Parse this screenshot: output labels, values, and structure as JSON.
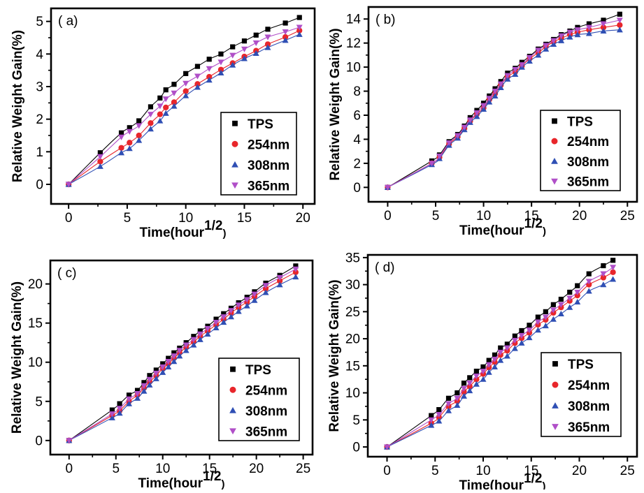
{
  "colors": {
    "tps": "#000000",
    "nm254": "#e8262b",
    "nm308": "#2f4fb4",
    "nm365": "#b04fc8",
    "frame": "#000000",
    "background": "#ffffff"
  },
  "chart_data": [
    {
      "type": "scatter",
      "panel_label": "( a)",
      "xlabel": "Time(hour",
      "xlabel_sup": "1/2",
      "xlabel_close": ")",
      "ylabel": "Relative Weight Gain(%)",
      "xlim": [
        -1.5,
        21
      ],
      "ylim": [
        -0.6,
        5.4
      ],
      "xticks": [
        0,
        5,
        10,
        15,
        20
      ],
      "yticks": [
        0,
        1,
        2,
        3,
        4,
        5
      ],
      "legend": "lower-right",
      "series": [
        {
          "name": "TPS",
          "marker": "square",
          "x": [
            0,
            2.7,
            4.5,
            5.2,
            6.0,
            7.0,
            7.8,
            8.3,
            9.0,
            10.0,
            11.0,
            12.0,
            13.0,
            14.0,
            15.0,
            16.0,
            17.0,
            18.5,
            19.7
          ],
          "y": [
            0,
            0.97,
            1.58,
            1.74,
            1.95,
            2.38,
            2.65,
            2.9,
            3.07,
            3.4,
            3.62,
            3.84,
            4.0,
            4.22,
            4.4,
            4.58,
            4.76,
            4.95,
            5.12
          ]
        },
        {
          "name": "254nm",
          "marker": "circle",
          "x": [
            0,
            2.7,
            4.5,
            5.2,
            6.0,
            7.0,
            7.8,
            8.3,
            9.0,
            10.0,
            11.0,
            12.0,
            13.0,
            14.0,
            15.0,
            16.0,
            17.0,
            18.5,
            19.7
          ],
          "y": [
            0,
            0.7,
            1.12,
            1.28,
            1.5,
            1.88,
            2.15,
            2.36,
            2.52,
            2.86,
            3.08,
            3.3,
            3.52,
            3.72,
            3.92,
            4.1,
            4.3,
            4.52,
            4.72
          ]
        },
        {
          "name": "308nm",
          "marker": "triangle-up",
          "x": [
            0,
            2.7,
            4.5,
            5.2,
            6.0,
            7.0,
            7.8,
            8.3,
            9.0,
            10.0,
            11.0,
            12.0,
            13.0,
            14.0,
            15.0,
            16.0,
            17.0,
            18.5,
            19.7
          ],
          "y": [
            0,
            0.55,
            0.97,
            1.1,
            1.35,
            1.7,
            1.95,
            2.18,
            2.4,
            2.72,
            2.98,
            3.2,
            3.42,
            3.66,
            3.86,
            4.02,
            4.2,
            4.42,
            4.6
          ]
        },
        {
          "name": "365nm",
          "marker": "triangle-down",
          "x": [
            0,
            2.7,
            4.5,
            5.2,
            6.0,
            7.0,
            7.8,
            8.3,
            9.0,
            10.0,
            11.0,
            12.0,
            13.0,
            14.0,
            15.0,
            16.0,
            17.0,
            18.5,
            19.7
          ],
          "y": [
            0,
            0.85,
            1.45,
            1.62,
            1.8,
            2.15,
            2.4,
            2.62,
            2.8,
            3.1,
            3.32,
            3.55,
            3.75,
            3.96,
            4.15,
            4.34,
            4.52,
            4.68,
            4.82
          ]
        }
      ]
    },
    {
      "type": "scatter",
      "panel_label": "( b)",
      "xlabel": "Time(hour",
      "xlabel_sup": "1/2",
      "xlabel_close": ")",
      "ylabel": "Relative Weight Gain(%)",
      "xlim": [
        -2,
        26
      ],
      "ylim": [
        -1.2,
        15
      ],
      "xticks": [
        0,
        5,
        10,
        15,
        20,
        25
      ],
      "yticks": [
        0,
        2,
        4,
        6,
        8,
        10,
        12,
        14
      ],
      "legend": "lower-right",
      "series": [
        {
          "name": "TPS",
          "marker": "square",
          "x": [
            0,
            4.6,
            5.4,
            6.4,
            7.3,
            8.0,
            8.6,
            9.3,
            10.0,
            10.6,
            11.2,
            11.8,
            12.5,
            13.3,
            14.0,
            14.8,
            15.7,
            16.5,
            17.3,
            18.1,
            19.0,
            19.8,
            21.0,
            22.5,
            24.2
          ],
          "y": [
            0,
            2.2,
            2.7,
            3.8,
            4.4,
            5.1,
            5.8,
            6.4,
            7.0,
            7.6,
            8.2,
            8.8,
            9.5,
            9.9,
            10.4,
            10.9,
            11.5,
            11.9,
            12.3,
            12.7,
            13.0,
            13.3,
            13.6,
            13.9,
            14.4
          ]
        },
        {
          "name": "254nm",
          "marker": "circle",
          "x": [
            0,
            4.6,
            5.4,
            6.4,
            7.3,
            8.0,
            8.6,
            9.3,
            10.0,
            10.6,
            11.2,
            11.8,
            12.5,
            13.3,
            14.0,
            14.8,
            15.7,
            16.5,
            17.3,
            18.1,
            19.0,
            19.8,
            21.0,
            22.5,
            24.2
          ],
          "y": [
            0,
            2.0,
            2.5,
            3.6,
            4.2,
            4.9,
            5.5,
            6.1,
            6.6,
            7.3,
            7.8,
            8.5,
            9.2,
            9.6,
            10.1,
            10.7,
            11.2,
            11.7,
            12.1,
            12.4,
            12.7,
            12.9,
            13.1,
            13.3,
            13.5
          ]
        },
        {
          "name": "308nm",
          "marker": "triangle-up",
          "x": [
            0,
            4.6,
            5.4,
            6.4,
            7.3,
            8.0,
            8.6,
            9.3,
            10.0,
            10.6,
            11.2,
            11.8,
            12.5,
            13.3,
            14.0,
            14.8,
            15.7,
            16.5,
            17.3,
            18.1,
            19.0,
            19.8,
            21.0,
            22.5,
            24.2
          ],
          "y": [
            0,
            1.9,
            2.4,
            3.5,
            4.1,
            4.8,
            5.4,
            5.9,
            6.5,
            7.1,
            7.6,
            8.3,
            9.0,
            9.4,
            10.0,
            10.5,
            11.0,
            11.5,
            11.9,
            12.2,
            12.5,
            12.7,
            12.8,
            13.0,
            13.1
          ]
        },
        {
          "name": "365nm",
          "marker": "triangle-down",
          "x": [
            0,
            4.6,
            5.4,
            6.4,
            7.3,
            8.0,
            8.6,
            9.3,
            10.0,
            10.6,
            11.2,
            11.8,
            12.5,
            13.3,
            14.0,
            14.8,
            15.7,
            16.5,
            17.3,
            18.1,
            19.0,
            19.8,
            21.0,
            22.5,
            24.2
          ],
          "y": [
            0,
            2.0,
            2.6,
            3.7,
            4.3,
            5.0,
            5.6,
            6.2,
            6.8,
            7.4,
            8.0,
            8.6,
            9.3,
            9.8,
            10.2,
            10.8,
            11.4,
            11.8,
            12.2,
            12.6,
            12.9,
            13.1,
            13.3,
            13.6,
            13.9
          ]
        }
      ]
    },
    {
      "type": "scatter",
      "panel_label": "( c)",
      "xlabel": "Time(hour",
      "xlabel_sup": "1/2",
      "xlabel_close": ")",
      "ylabel": "Relative Weight Gain(%)",
      "xlim": [
        -2,
        26
      ],
      "ylim": [
        -1.8,
        23
      ],
      "xticks": [
        0,
        5,
        10,
        15,
        20,
        25
      ],
      "yticks": [
        0,
        5,
        10,
        15,
        20
      ],
      "legend": "lower-right",
      "series": [
        {
          "name": "TPS",
          "marker": "square",
          "x": [
            0,
            4.6,
            5.4,
            6.4,
            7.3,
            8.0,
            8.6,
            9.3,
            10.0,
            10.6,
            11.2,
            11.8,
            12.5,
            13.3,
            14.0,
            14.8,
            15.7,
            16.5,
            17.3,
            18.1,
            19.0,
            19.8,
            21.0,
            22.5,
            24.2
          ],
          "y": [
            0,
            3.9,
            4.7,
            5.8,
            6.4,
            7.4,
            8.3,
            9.0,
            9.8,
            10.5,
            11.2,
            11.8,
            12.5,
            13.3,
            14.0,
            14.6,
            15.5,
            16.2,
            16.9,
            17.6,
            18.3,
            19.0,
            20.1,
            21.1,
            22.3
          ]
        },
        {
          "name": "254nm",
          "marker": "circle",
          "x": [
            0,
            4.6,
            5.4,
            6.4,
            7.3,
            8.0,
            8.6,
            9.3,
            10.0,
            10.6,
            11.2,
            11.8,
            12.5,
            13.3,
            14.0,
            14.8,
            15.7,
            16.5,
            17.3,
            18.1,
            19.0,
            19.8,
            21.0,
            22.5,
            24.2
          ],
          "y": [
            0,
            3.2,
            3.8,
            5.0,
            5.8,
            6.7,
            7.5,
            8.3,
            9.2,
            9.8,
            10.5,
            11.2,
            11.9,
            12.6,
            13.3,
            14.0,
            14.8,
            15.5,
            16.3,
            17.0,
            17.7,
            18.4,
            19.4,
            20.4,
            21.5
          ]
        },
        {
          "name": "308nm",
          "marker": "triangle-up",
          "x": [
            0,
            4.6,
            5.4,
            6.4,
            7.3,
            8.0,
            8.6,
            9.3,
            10.0,
            10.6,
            11.2,
            11.8,
            12.5,
            13.3,
            14.0,
            14.8,
            15.7,
            16.5,
            17.3,
            18.1,
            19.0,
            19.8,
            21.0,
            22.5,
            24.2
          ],
          "y": [
            0,
            2.9,
            3.5,
            4.7,
            5.4,
            6.3,
            7.1,
            7.9,
            8.7,
            9.4,
            10.1,
            10.8,
            11.5,
            12.2,
            12.9,
            13.6,
            14.4,
            15.1,
            15.8,
            16.5,
            17.2,
            17.9,
            18.9,
            19.9,
            20.9
          ]
        },
        {
          "name": "365nm",
          "marker": "triangle-down",
          "x": [
            0,
            4.6,
            5.4,
            6.4,
            7.3,
            8.0,
            8.6,
            9.3,
            10.0,
            10.6,
            11.2,
            11.8,
            12.5,
            13.3,
            14.0,
            14.8,
            15.7,
            16.5,
            17.3,
            18.1,
            19.0,
            19.8,
            21.0,
            22.5,
            24.2
          ],
          "y": [
            0,
            3.4,
            4.1,
            5.3,
            6.0,
            7.0,
            7.8,
            8.6,
            9.4,
            10.1,
            10.8,
            11.5,
            12.2,
            12.9,
            13.6,
            14.3,
            15.1,
            15.8,
            16.6,
            17.3,
            18.0,
            18.7,
            19.8,
            20.8,
            21.9
          ]
        }
      ]
    },
    {
      "type": "scatter",
      "panel_label": "( d)",
      "xlabel": "Time(hour",
      "xlabel_sup": "1/2",
      "xlabel_close": ")",
      "ylabel": "Relative Weight Gain(%)",
      "xlim": [
        -2,
        26
      ],
      "ylim": [
        -1.8,
        35.5
      ],
      "xticks": [
        0,
        5,
        10,
        15,
        20,
        25
      ],
      "yticks": [
        0,
        5,
        10,
        15,
        20,
        25,
        30,
        35
      ],
      "legend": "lower-right",
      "series": [
        {
          "name": "TPS",
          "marker": "square",
          "x": [
            0,
            4.6,
            5.4,
            6.4,
            7.3,
            8.0,
            8.6,
            9.3,
            10.0,
            10.6,
            11.2,
            11.8,
            12.5,
            13.3,
            14.0,
            14.8,
            15.7,
            16.5,
            17.3,
            18.1,
            19.0,
            19.8,
            21.0,
            22.5,
            23.5
          ],
          "y": [
            0,
            5.8,
            6.9,
            9.0,
            10.0,
            11.8,
            12.8,
            14.0,
            14.8,
            16.0,
            17.0,
            18.3,
            19.0,
            20.5,
            21.5,
            22.5,
            24.0,
            25.0,
            26.3,
            27.3,
            28.6,
            29.8,
            32.0,
            33.5,
            34.5
          ]
        },
        {
          "name": "254nm",
          "marker": "circle",
          "x": [
            0,
            4.6,
            5.4,
            6.4,
            7.3,
            8.0,
            8.6,
            9.3,
            10.0,
            10.6,
            11.2,
            11.8,
            12.5,
            13.3,
            14.0,
            14.8,
            15.7,
            16.5,
            17.3,
            18.1,
            19.0,
            19.8,
            21.0,
            22.5,
            23.5
          ],
          "y": [
            0,
            4.4,
            5.5,
            7.5,
            8.5,
            10.2,
            11.2,
            12.5,
            13.5,
            14.7,
            15.7,
            17.0,
            17.8,
            19.2,
            20.1,
            21.1,
            22.6,
            23.5,
            24.8,
            25.8,
            27.0,
            28.0,
            30.0,
            31.3,
            32.3
          ]
        },
        {
          "name": "308nm",
          "marker": "triangle-up",
          "x": [
            0,
            4.6,
            5.4,
            6.4,
            7.3,
            8.0,
            8.6,
            9.3,
            10.0,
            10.6,
            11.2,
            11.8,
            12.5,
            13.3,
            14.0,
            14.8,
            15.7,
            16.5,
            17.3,
            18.1,
            19.0,
            19.8,
            21.0,
            22.5,
            23.5
          ],
          "y": [
            0,
            4.0,
            4.8,
            6.7,
            7.7,
            9.4,
            10.4,
            11.6,
            12.5,
            13.8,
            14.8,
            16.0,
            16.8,
            18.2,
            19.2,
            20.2,
            21.6,
            22.4,
            23.6,
            24.6,
            25.8,
            26.8,
            28.8,
            30.0,
            31.0
          ]
        },
        {
          "name": "365nm",
          "marker": "triangle-down",
          "x": [
            0,
            4.6,
            5.4,
            6.4,
            7.3,
            8.0,
            8.6,
            9.3,
            10.0,
            10.6,
            11.2,
            11.8,
            12.5,
            13.3,
            14.0,
            14.8,
            15.7,
            16.5,
            17.3,
            18.1,
            19.0,
            19.8,
            21.0,
            22.5,
            23.5
          ],
          "y": [
            0,
            5.0,
            6.0,
            8.0,
            9.0,
            10.8,
            11.8,
            13.1,
            14.0,
            15.2,
            16.2,
            17.5,
            18.3,
            19.7,
            20.6,
            21.6,
            23.1,
            24.0,
            25.3,
            26.3,
            27.5,
            28.6,
            30.6,
            32.0,
            33.2
          ]
        }
      ]
    }
  ]
}
